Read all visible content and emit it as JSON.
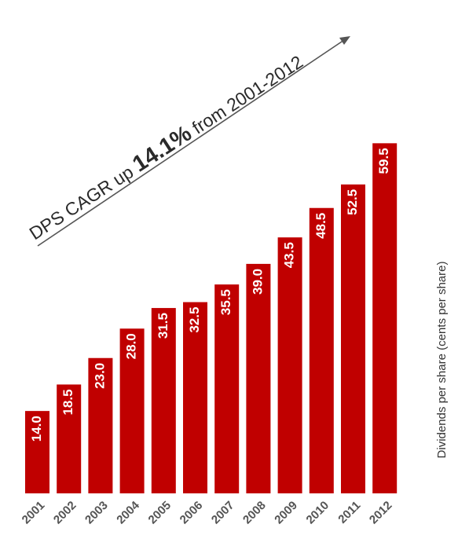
{
  "chart_data": {
    "type": "bar",
    "categories": [
      "2001",
      "2002",
      "2003",
      "2004",
      "2005",
      "2006",
      "2007",
      "2008",
      "2009",
      "2010",
      "2011",
      "2012"
    ],
    "values": [
      14.0,
      18.5,
      23.0,
      28.0,
      31.5,
      32.5,
      35.5,
      39.0,
      43.5,
      48.5,
      52.5,
      59.5
    ],
    "value_labels": [
      "14.0",
      "18.5",
      "23.0",
      "28.0",
      "31.5",
      "32.5",
      "35.5",
      "39.0",
      "43.5",
      "48.5",
      "52.5",
      "59.5"
    ],
    "title": "",
    "xlabel": "",
    "ylabel": "Dividends per share (cents per share)",
    "ylim": [
      0,
      62
    ],
    "grid": false,
    "bar_color": "#c00000",
    "annotation": {
      "prefix": "DPS CAGR up ",
      "highlight": "14.1%",
      "suffix": " from 2001-2012",
      "arrow_color": "#555555"
    }
  }
}
